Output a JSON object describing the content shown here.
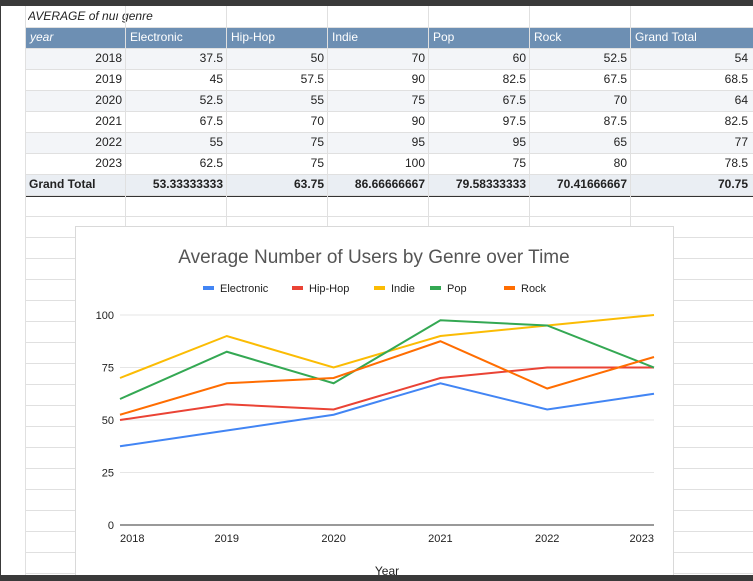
{
  "pivot": {
    "title": "AVERAGE of nuı genre",
    "row_header": "year",
    "columns": [
      "Electronic",
      "Hip-Hop",
      "Indie",
      "Pop",
      "Rock",
      "Grand Total"
    ],
    "rows": [
      {
        "year": "2018",
        "values": [
          "37.5",
          "50",
          "70",
          "60",
          "52.5",
          "54"
        ]
      },
      {
        "year": "2019",
        "values": [
          "45",
          "57.5",
          "90",
          "82.5",
          "67.5",
          "68.5"
        ]
      },
      {
        "year": "2020",
        "values": [
          "52.5",
          "55",
          "75",
          "67.5",
          "70",
          "64"
        ]
      },
      {
        "year": "2021",
        "values": [
          "67.5",
          "70",
          "90",
          "97.5",
          "87.5",
          "82.5"
        ]
      },
      {
        "year": "2022",
        "values": [
          "55",
          "75",
          "95",
          "95",
          "65",
          "77"
        ]
      },
      {
        "year": "2023",
        "values": [
          "62.5",
          "75",
          "100",
          "75",
          "80",
          "78.5"
        ]
      }
    ],
    "total_label": "Grand Total",
    "totals": [
      "53.33333333",
      "63.75",
      "86.66666667",
      "79.58333333",
      "70.41666667",
      "70.75"
    ]
  },
  "colors": {
    "Electronic": "#4285f4",
    "Hip-Hop": "#ea4335",
    "Indie": "#fbbc04",
    "Pop": "#34a853",
    "Rock": "#ff6d01"
  },
  "chart_data": {
    "type": "line",
    "title": "Average Number of Users by Genre over Time",
    "xlabel": "Year",
    "ylabel": "",
    "categories": [
      "2018",
      "2019",
      "2020",
      "2021",
      "2022",
      "2023"
    ],
    "ylim": [
      0,
      100
    ],
    "yticks": [
      "0",
      "25",
      "50",
      "75",
      "100"
    ],
    "legend_position": "top",
    "series": [
      {
        "name": "Electronic",
        "values": [
          37.5,
          45,
          52.5,
          67.5,
          55,
          62.5
        ]
      },
      {
        "name": "Hip-Hop",
        "values": [
          50,
          57.5,
          55,
          70,
          75,
          75
        ]
      },
      {
        "name": "Indie",
        "values": [
          70,
          90,
          75,
          90,
          95,
          100
        ]
      },
      {
        "name": "Pop",
        "values": [
          60,
          82.5,
          67.5,
          97.5,
          95,
          75
        ]
      },
      {
        "name": "Rock",
        "values": [
          52.5,
          67.5,
          70,
          87.5,
          65,
          80
        ]
      }
    ]
  }
}
